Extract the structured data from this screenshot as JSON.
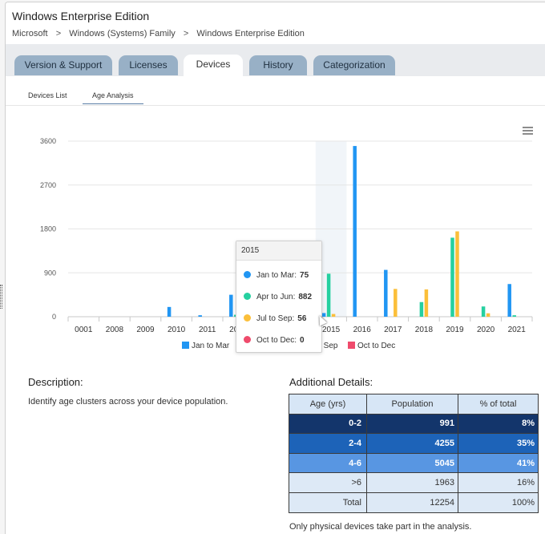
{
  "header": {
    "title": "Windows Enterprise Edition",
    "breadcrumb": [
      "Microsoft",
      "Windows (Systems) Family",
      "Windows Enterprise Edition"
    ],
    "breadcrumb_separator": ">"
  },
  "tabs": [
    {
      "label": "Version & Support",
      "active": false
    },
    {
      "label": "Licenses",
      "active": false
    },
    {
      "label": "Devices",
      "active": true
    },
    {
      "label": "History",
      "active": false
    },
    {
      "label": "Categorization",
      "active": false
    }
  ],
  "subtabs": [
    {
      "label": "Devices List",
      "active": false
    },
    {
      "label": "Age Analysis",
      "active": true
    }
  ],
  "menu_icon": "hamburger-menu-icon",
  "chart_data": {
    "type": "bar",
    "categories": [
      "0001",
      "2008",
      "2009",
      "2010",
      "2011",
      "2012",
      "2013",
      "2014",
      "2015",
      "2016",
      "2017",
      "2018",
      "2019",
      "2020",
      "2021"
    ],
    "yticks": [
      0,
      900,
      1800,
      2700,
      3600
    ],
    "ylim": [
      0,
      3600
    ],
    "legend_position": "bottom",
    "highlighted_category": "2015",
    "series": [
      {
        "name": "Jan to Mar",
        "color": "#2196f3",
        "values": [
          0,
          0,
          0,
          200,
          30,
          450,
          0,
          0,
          75,
          3500,
          960,
          0,
          0,
          0,
          670
        ]
      },
      {
        "name": "Apr to Jun",
        "color": "#26d0a0",
        "values": [
          0,
          0,
          0,
          0,
          0,
          40,
          0,
          0,
          882,
          0,
          0,
          300,
          1620,
          210,
          30
        ]
      },
      {
        "name": "Jul to Sep",
        "color": "#fbbf3a",
        "values": [
          0,
          0,
          0,
          0,
          0,
          0,
          0,
          0,
          56,
          0,
          570,
          560,
          1750,
          70,
          0
        ]
      },
      {
        "name": "Oct to Dec",
        "color": "#ef4b6c",
        "values": [
          0,
          0,
          0,
          0,
          0,
          0,
          0,
          0,
          0,
          0,
          0,
          0,
          0,
          0,
          0
        ]
      }
    ],
    "tooltip": {
      "title": "2015",
      "rows": [
        {
          "label": "Jan to Mar:",
          "value": "75",
          "color": "#2196f3"
        },
        {
          "label": "Apr to Jun:",
          "value": "882",
          "color": "#26d0a0"
        },
        {
          "label": "Jul to Sep:",
          "value": "56",
          "color": "#fbbf3a"
        },
        {
          "label": "Oct to Dec:",
          "value": "0",
          "color": "#ef4b6c"
        }
      ]
    }
  },
  "description": {
    "heading": "Description:",
    "text": "Identify age clusters across your device population."
  },
  "details": {
    "heading": "Additional Details:",
    "columns": [
      "Age (yrs)",
      "Population",
      "% of total"
    ],
    "rows": [
      [
        "0-2",
        "991",
        "8%"
      ],
      [
        "2-4",
        "4255",
        "35%"
      ],
      [
        "4-6",
        "5045",
        "41%"
      ],
      [
        ">6",
        "1963",
        "16%"
      ],
      [
        "Total",
        "12254",
        "100%"
      ]
    ],
    "note": "Only physical devices take part in the analysis."
  }
}
